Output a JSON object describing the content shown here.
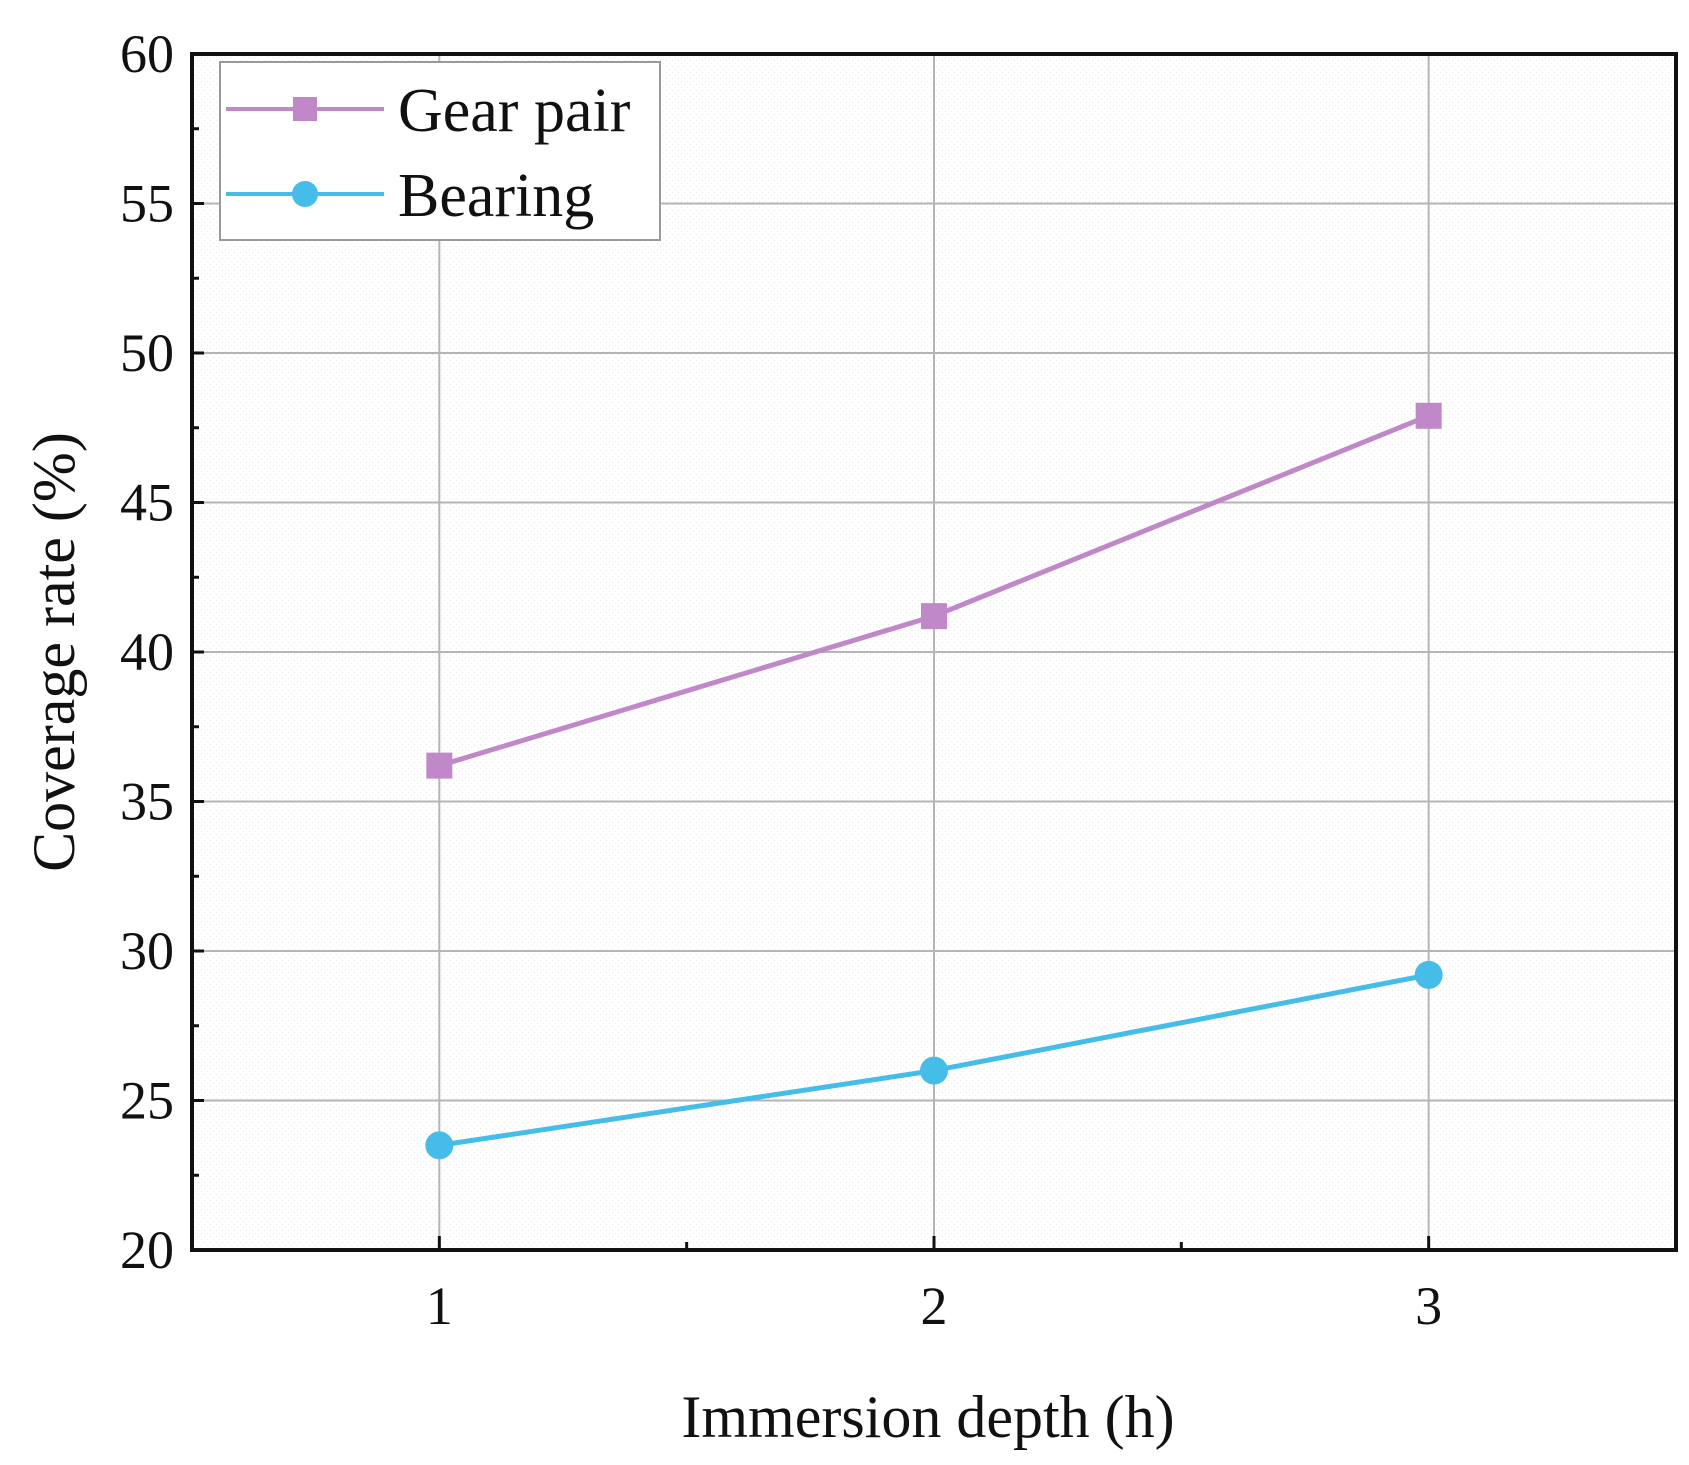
{
  "chart_data": {
    "type": "line",
    "title": "",
    "xlabel": "Immersion depth (h)",
    "ylabel": "Coverage rate (%)",
    "x": [
      1,
      2,
      3
    ],
    "xticks": [
      "1",
      "2",
      "3"
    ],
    "xlim": [
      0.5,
      3.5
    ],
    "ylim": [
      20,
      60
    ],
    "yticks": [
      "20",
      "25",
      "30",
      "35",
      "40",
      "45",
      "50",
      "55",
      "60"
    ],
    "grid": true,
    "legend_position": "top-left",
    "series": [
      {
        "name": "Gear pair",
        "marker": "square",
        "color": "#c088c8",
        "values": [
          36.2,
          41.2,
          47.9
        ]
      },
      {
        "name": "Bearing",
        "marker": "circle",
        "color": "#45bde8",
        "values": [
          23.5,
          26.0,
          29.2
        ]
      }
    ]
  }
}
